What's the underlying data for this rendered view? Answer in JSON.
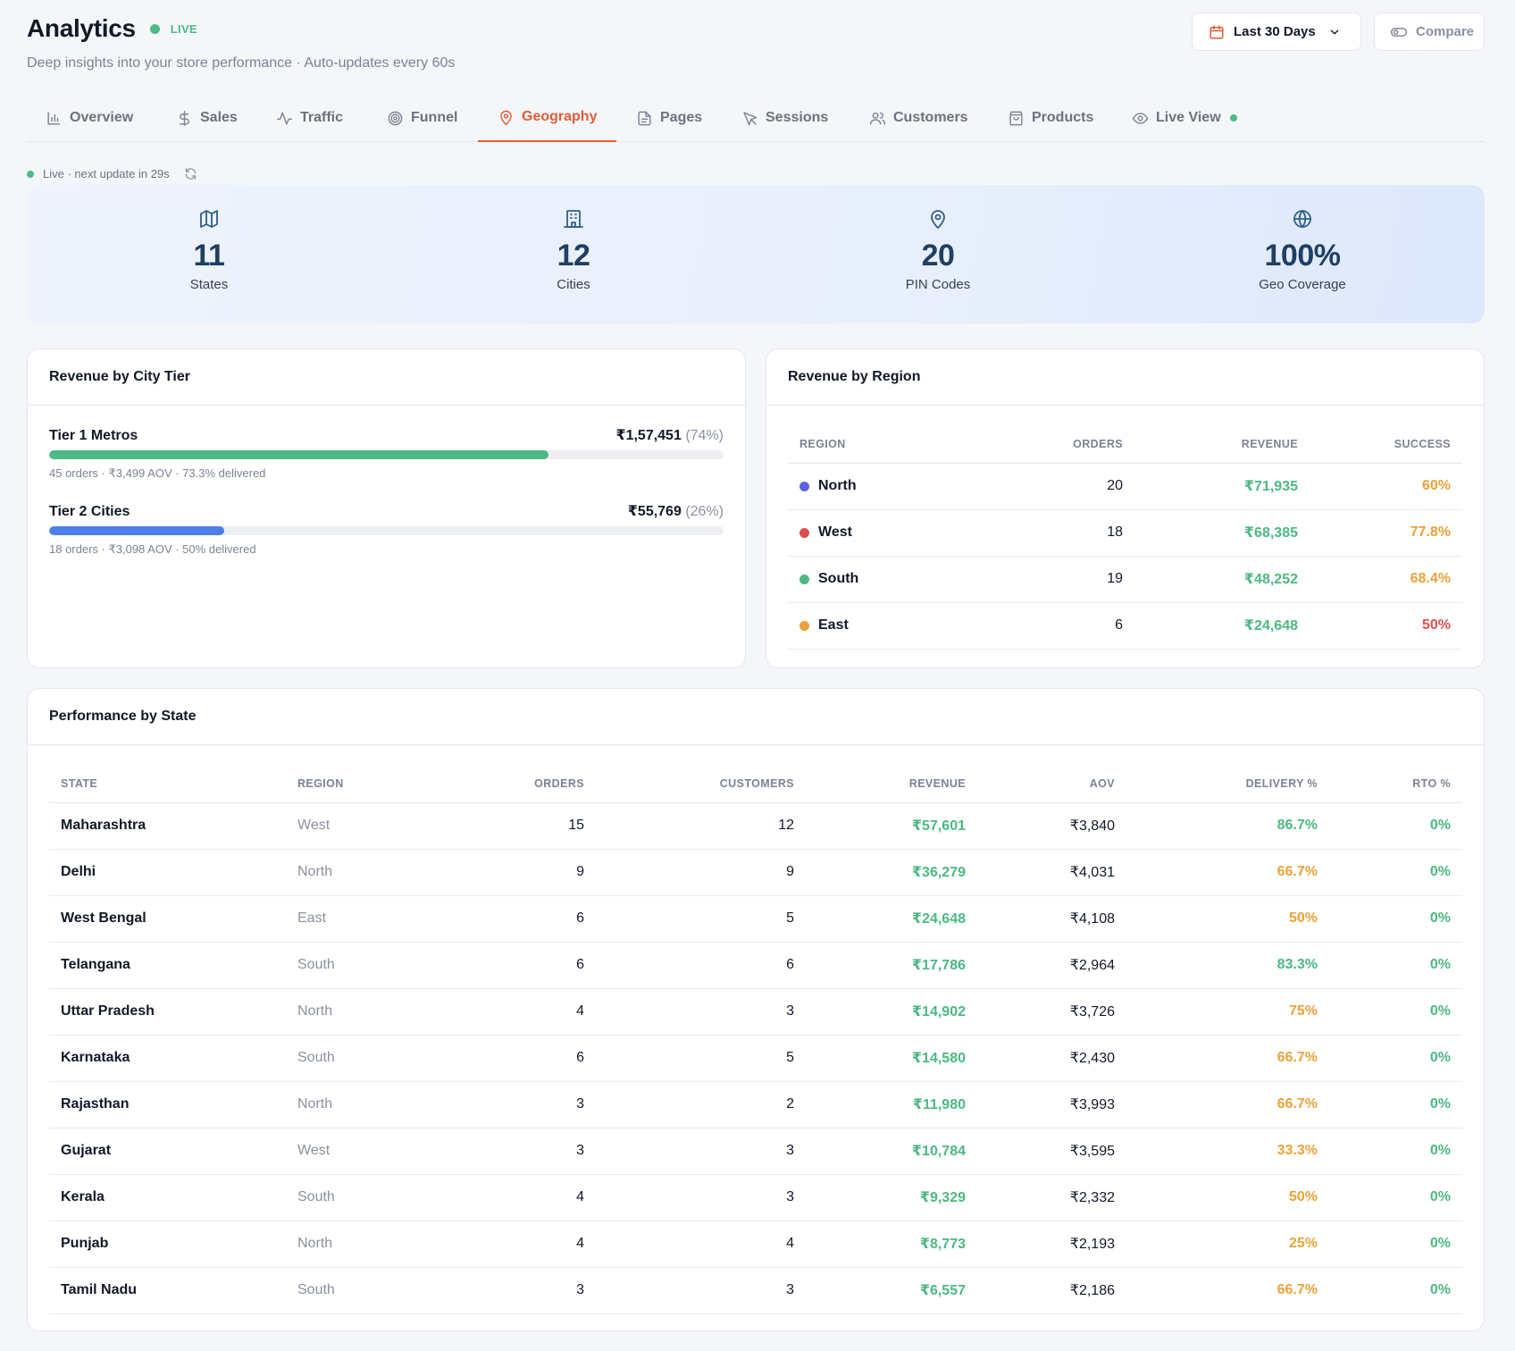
{
  "header": {
    "title": "Analytics",
    "live_label": "LIVE",
    "subtitle": "Deep insights into your store performance · Auto-updates every 60s",
    "date_range": "Last 30 Days",
    "compare_label": "Compare"
  },
  "tabs": [
    {
      "label": "Overview",
      "icon": "bar-chart-icon"
    },
    {
      "label": "Sales",
      "icon": "dollar-icon"
    },
    {
      "label": "Traffic",
      "icon": "activity-icon"
    },
    {
      "label": "Funnel",
      "icon": "target-icon"
    },
    {
      "label": "Geography",
      "icon": "map-pin-icon",
      "active": true
    },
    {
      "label": "Pages",
      "icon": "file-icon"
    },
    {
      "label": "Sessions",
      "icon": "cursor-icon"
    },
    {
      "label": "Customers",
      "icon": "users-icon"
    },
    {
      "label": "Products",
      "icon": "shopping-bag-icon"
    },
    {
      "label": "Live View",
      "icon": "eye-icon"
    }
  ],
  "live_status": "Live · next update in 29s",
  "stats": [
    {
      "value": "11",
      "label": "States",
      "icon": "map-icon"
    },
    {
      "value": "12",
      "label": "Cities",
      "icon": "building-icon"
    },
    {
      "value": "20",
      "label": "PIN Codes",
      "icon": "map-pin-icon"
    },
    {
      "value": "100%",
      "label": "Geo Coverage",
      "icon": "globe-icon"
    }
  ],
  "city_tier": {
    "title": "Revenue by City Tier",
    "tiers": [
      {
        "name": "Tier 1 Metros",
        "revenue": "₹1,57,451",
        "pct": "(74%)",
        "share": 0.74,
        "meta": "45 orders · ₹3,499 AOV · 73.3% delivered",
        "color": "#4cb883"
      },
      {
        "name": "Tier 2 Cities",
        "revenue": "₹55,769",
        "pct": "(26%)",
        "share": 0.26,
        "meta": "18 orders · ₹3,098 AOV · 50% delivered",
        "color": "#4f7fe8"
      }
    ]
  },
  "region": {
    "title": "Revenue by Region",
    "headers": [
      "REGION",
      "ORDERS",
      "REVENUE",
      "SUCCESS"
    ],
    "rows": [
      {
        "name": "North",
        "color": "#5b63e0",
        "orders": "20",
        "revenue": "₹71,935",
        "success": "60%",
        "tone": "amber"
      },
      {
        "name": "West",
        "color": "#e04e4e",
        "orders": "18",
        "revenue": "₹68,385",
        "success": "77.8%",
        "tone": "amber"
      },
      {
        "name": "South",
        "color": "#4cb883",
        "orders": "19",
        "revenue": "₹48,252",
        "success": "68.4%",
        "tone": "amber"
      },
      {
        "name": "East",
        "color": "#eba23a",
        "orders": "6",
        "revenue": "₹24,648",
        "success": "50%",
        "tone": "red"
      }
    ]
  },
  "state": {
    "title": "Performance by State",
    "headers": [
      "STATE",
      "REGION",
      "ORDERS",
      "CUSTOMERS",
      "REVENUE",
      "AOV",
      "DELIVERY %",
      "RTO %"
    ],
    "rows": [
      {
        "state": "Maharashtra",
        "region": "West",
        "orders": "15",
        "customers": "12",
        "revenue": "₹57,601",
        "aov": "₹3,840",
        "delivery": "86.7%",
        "dtone": "green",
        "rto": "0%"
      },
      {
        "state": "Delhi",
        "region": "North",
        "orders": "9",
        "customers": "9",
        "revenue": "₹36,279",
        "aov": "₹4,031",
        "delivery": "66.7%",
        "dtone": "amber",
        "rto": "0%"
      },
      {
        "state": "West Bengal",
        "region": "East",
        "orders": "6",
        "customers": "5",
        "revenue": "₹24,648",
        "aov": "₹4,108",
        "delivery": "50%",
        "dtone": "amber",
        "rto": "0%"
      },
      {
        "state": "Telangana",
        "region": "South",
        "orders": "6",
        "customers": "6",
        "revenue": "₹17,786",
        "aov": "₹2,964",
        "delivery": "83.3%",
        "dtone": "green",
        "rto": "0%"
      },
      {
        "state": "Uttar Pradesh",
        "region": "North",
        "orders": "4",
        "customers": "3",
        "revenue": "₹14,902",
        "aov": "₹3,726",
        "delivery": "75%",
        "dtone": "amber",
        "rto": "0%"
      },
      {
        "state": "Karnataka",
        "region": "South",
        "orders": "6",
        "customers": "5",
        "revenue": "₹14,580",
        "aov": "₹2,430",
        "delivery": "66.7%",
        "dtone": "amber",
        "rto": "0%"
      },
      {
        "state": "Rajasthan",
        "region": "North",
        "orders": "3",
        "customers": "2",
        "revenue": "₹11,980",
        "aov": "₹3,993",
        "delivery": "66.7%",
        "dtone": "amber",
        "rto": "0%"
      },
      {
        "state": "Gujarat",
        "region": "West",
        "orders": "3",
        "customers": "3",
        "revenue": "₹10,784",
        "aov": "₹3,595",
        "delivery": "33.3%",
        "dtone": "amber",
        "rto": "0%"
      },
      {
        "state": "Kerala",
        "region": "South",
        "orders": "4",
        "customers": "3",
        "revenue": "₹9,329",
        "aov": "₹2,332",
        "delivery": "50%",
        "dtone": "amber",
        "rto": "0%"
      },
      {
        "state": "Punjab",
        "region": "North",
        "orders": "4",
        "customers": "4",
        "revenue": "₹8,773",
        "aov": "₹2,193",
        "delivery": "25%",
        "dtone": "amber",
        "rto": "0%"
      },
      {
        "state": "Tamil Nadu",
        "region": "South",
        "orders": "3",
        "customers": "3",
        "revenue": "₹6,557",
        "aov": "₹2,186",
        "delivery": "66.7%",
        "dtone": "amber",
        "rto": "0%"
      }
    ]
  }
}
